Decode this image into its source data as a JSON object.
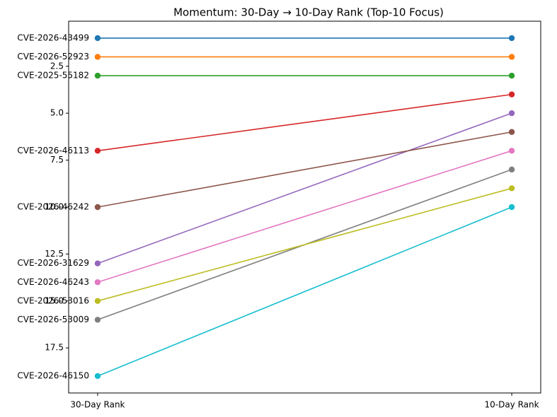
{
  "chart_data": {
    "type": "slope",
    "title": "Momentum: 30-Day → 10-Day Rank (Top-10 Focus)",
    "categories": [
      "30-Day Rank",
      "10-Day Rank"
    ],
    "ylim": [
      19.9,
      0.1
    ],
    "inverted": true,
    "yticks": [
      2.5,
      {
        "value": 5,
        "label": "5.0"
      },
      7.5,
      {
        "value": 10,
        "label": "10.0"
      },
      12.5,
      {
        "value": 15,
        "label": "15.0"
      },
      17.5
    ],
    "series": [
      {
        "name": "CVE-2026-43499",
        "color": "#1f77b4",
        "values": [
          1,
          1
        ]
      },
      {
        "name": "CVE-2026-52923",
        "color": "#ff7f0e",
        "values": [
          2,
          2
        ]
      },
      {
        "name": "CVE-2025-55182",
        "color": "#2ca02c",
        "values": [
          3,
          3
        ]
      },
      {
        "name": "CVE-2026-46113",
        "color": "#d62728",
        "values": [
          7,
          4
        ]
      },
      {
        "name": "CVE-2026-31629",
        "color": "#9467bd",
        "values": [
          13,
          5
        ]
      },
      {
        "name": "CVE-2026-46242",
        "color": "#8c564b",
        "values": [
          10,
          6
        ]
      },
      {
        "name": "CVE-2026-46243",
        "color": "#e377c2",
        "values": [
          14,
          7
        ]
      },
      {
        "name": "CVE-2026-53009",
        "color": "#7f7f7f",
        "values": [
          16,
          8
        ]
      },
      {
        "name": "CVE-2026-53016",
        "color": "#bcbd22",
        "values": [
          15,
          9
        ]
      },
      {
        "name": "CVE-2026-46150",
        "color": "#17becf",
        "values": [
          19,
          10
        ]
      }
    ]
  }
}
